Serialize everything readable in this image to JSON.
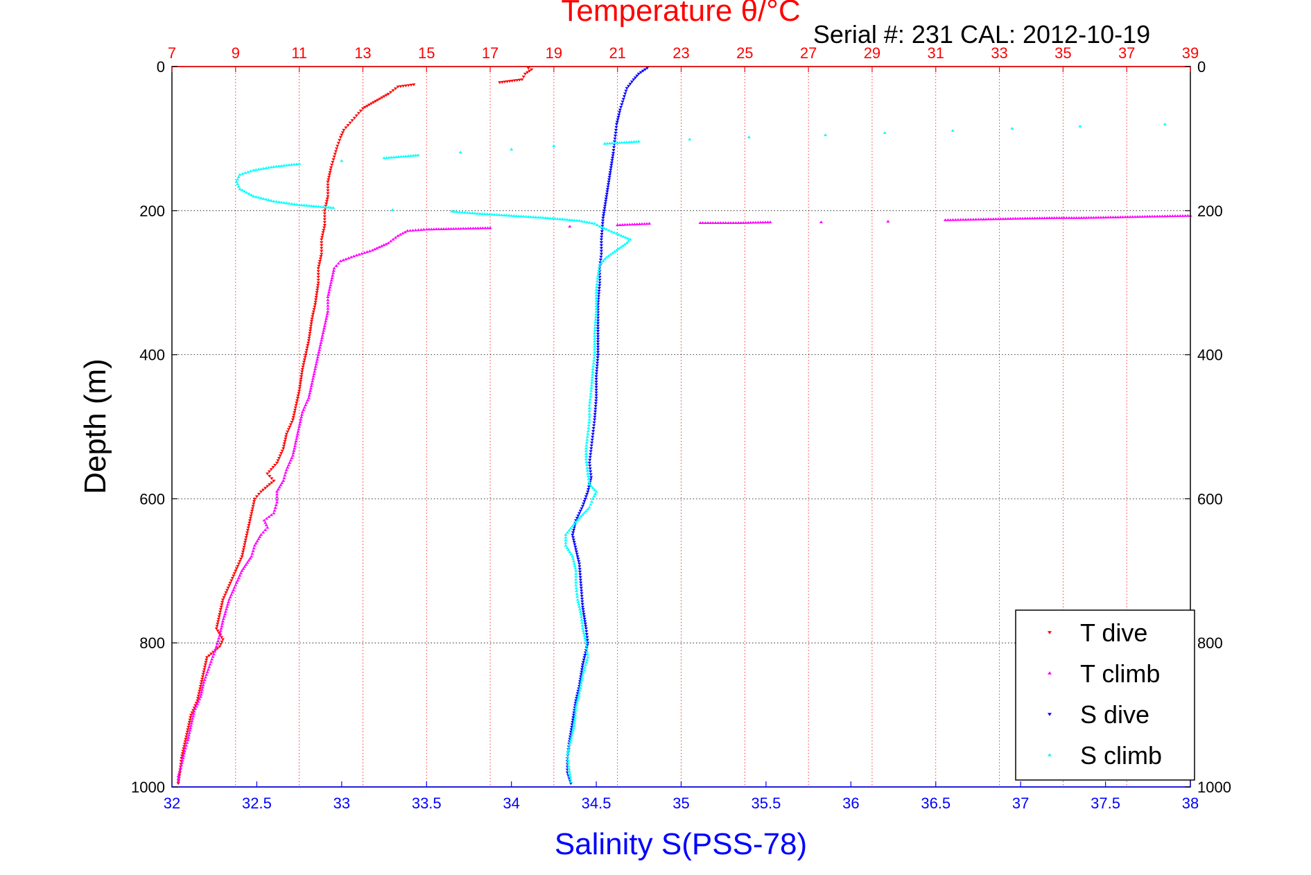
{
  "chart_data": {
    "type": "scatter",
    "title": "Temperature θ/°C",
    "subtitle": "Serial #: 231  CAL: 2012-10-19",
    "xlabel": "Salinity S(PSS-78)",
    "x2label": "Temperature θ/°C",
    "ylabel": "Depth (m)",
    "xlim": [
      32,
      38
    ],
    "x2lim": [
      7,
      39
    ],
    "ylim": [
      0,
      1000
    ],
    "y_reversed": true,
    "x_ticks": [
      "32",
      "32.5",
      "33",
      "33.5",
      "34",
      "34.5",
      "35",
      "35.5",
      "36",
      "36.5",
      "37",
      "37.5",
      "38"
    ],
    "x2_ticks": [
      "7",
      "9",
      "11",
      "13",
      "15",
      "17",
      "19",
      "21",
      "23",
      "25",
      "27",
      "29",
      "31",
      "33",
      "35",
      "37",
      "39"
    ],
    "y_ticks": [
      "0",
      "200",
      "400",
      "600",
      "800",
      "1000"
    ],
    "grid": true,
    "legend_position": "bottom-right",
    "legend": [
      "T dive",
      "T climb",
      "S dive",
      "S climb"
    ],
    "series": [
      {
        "name": "T dive",
        "axis": "temperature",
        "color": "#ff0000",
        "marker": "triangle-down",
        "points": [
          [
            18.2,
            2
          ],
          [
            18.3,
            4
          ],
          [
            18.1,
            10
          ],
          [
            18.0,
            18
          ],
          [
            17.3,
            22
          ],
          [
            14.6,
            25
          ],
          [
            14.1,
            28
          ],
          [
            13.8,
            38
          ],
          [
            13.4,
            48
          ],
          [
            13.0,
            58
          ],
          [
            12.8,
            68
          ],
          [
            12.6,
            78
          ],
          [
            12.4,
            88
          ],
          [
            12.3,
            98
          ],
          [
            12.2,
            110
          ],
          [
            12.1,
            125
          ],
          [
            12.0,
            140
          ],
          [
            11.9,
            160
          ],
          [
            11.9,
            180
          ],
          [
            11.8,
            200
          ],
          [
            11.8,
            220
          ],
          [
            11.7,
            240
          ],
          [
            11.7,
            260
          ],
          [
            11.6,
            280
          ],
          [
            11.6,
            300
          ],
          [
            11.5,
            330
          ],
          [
            11.4,
            350
          ],
          [
            11.3,
            380
          ],
          [
            11.2,
            400
          ],
          [
            11.1,
            420
          ],
          [
            11.0,
            450
          ],
          [
            10.9,
            470
          ],
          [
            10.8,
            490
          ],
          [
            10.6,
            510
          ],
          [
            10.5,
            530
          ],
          [
            10.3,
            550
          ],
          [
            10.0,
            565
          ],
          [
            10.2,
            575
          ],
          [
            9.8,
            590
          ],
          [
            9.6,
            600
          ],
          [
            9.5,
            620
          ],
          [
            9.4,
            640
          ],
          [
            9.3,
            660
          ],
          [
            9.2,
            680
          ],
          [
            9.0,
            700
          ],
          [
            8.8,
            720
          ],
          [
            8.6,
            740
          ],
          [
            8.5,
            760
          ],
          [
            8.4,
            780
          ],
          [
            8.6,
            795
          ],
          [
            8.5,
            805
          ],
          [
            8.1,
            820
          ],
          [
            8.0,
            840
          ],
          [
            7.9,
            860
          ],
          [
            7.8,
            880
          ],
          [
            7.6,
            900
          ],
          [
            7.5,
            920
          ],
          [
            7.4,
            940
          ],
          [
            7.3,
            960
          ],
          [
            7.25,
            980
          ],
          [
            7.2,
            995
          ]
        ]
      },
      {
        "name": "T climb",
        "axis": "temperature",
        "color": "#ff00ff",
        "marker": "triangle-up",
        "points": [
          [
            7.2,
            992
          ],
          [
            7.2,
            985
          ],
          [
            7.3,
            970
          ],
          [
            7.4,
            950
          ],
          [
            7.5,
            935
          ],
          [
            7.6,
            915
          ],
          [
            7.7,
            895
          ],
          [
            7.9,
            875
          ],
          [
            8.0,
            855
          ],
          [
            8.2,
            830
          ],
          [
            8.4,
            805
          ],
          [
            8.5,
            790
          ],
          [
            8.6,
            770
          ],
          [
            8.8,
            740
          ],
          [
            9.0,
            720
          ],
          [
            9.2,
            700
          ],
          [
            9.5,
            680
          ],
          [
            9.6,
            665
          ],
          [
            9.8,
            650
          ],
          [
            10.0,
            640
          ],
          [
            9.9,
            630
          ],
          [
            10.2,
            620
          ],
          [
            10.3,
            605
          ],
          [
            10.3,
            590
          ],
          [
            10.5,
            575
          ],
          [
            10.6,
            560
          ],
          [
            10.8,
            540
          ],
          [
            10.9,
            520
          ],
          [
            11.0,
            500
          ],
          [
            11.1,
            480
          ],
          [
            11.3,
            460
          ],
          [
            11.4,
            440
          ],
          [
            11.5,
            420
          ],
          [
            11.6,
            400
          ],
          [
            11.7,
            380
          ],
          [
            11.8,
            360
          ],
          [
            11.9,
            340
          ],
          [
            11.9,
            320
          ],
          [
            12.0,
            300
          ],
          [
            12.1,
            280
          ],
          [
            12.3,
            270
          ],
          [
            12.8,
            262
          ],
          [
            13.3,
            255
          ],
          [
            13.8,
            245
          ],
          [
            14.1,
            235
          ],
          [
            14.4,
            228
          ],
          [
            15.0,
            226
          ],
          [
            16.0,
            225
          ],
          [
            17.0,
            224
          ],
          [
            19.5,
            222
          ],
          [
            21.0,
            220
          ],
          [
            22.0,
            218
          ],
          [
            23.6,
            217
          ],
          [
            24.8,
            217
          ],
          [
            25.8,
            216
          ],
          [
            27.4,
            216
          ],
          [
            29.5,
            215
          ],
          [
            31.3,
            213
          ],
          [
            32.5,
            212
          ],
          [
            33.5,
            211
          ],
          [
            34.8,
            210
          ],
          [
            35.5,
            210
          ],
          [
            36.8,
            209
          ],
          [
            37.8,
            208
          ],
          [
            39.0,
            207
          ]
        ]
      },
      {
        "name": "S dive",
        "axis": "salinity",
        "color": "#0000ff",
        "marker": "triangle-down",
        "points": [
          [
            34.8,
            2
          ],
          [
            34.75,
            10
          ],
          [
            34.72,
            18
          ],
          [
            34.68,
            30
          ],
          [
            34.66,
            45
          ],
          [
            34.64,
            60
          ],
          [
            34.62,
            80
          ],
          [
            34.61,
            100
          ],
          [
            34.6,
            120
          ],
          [
            34.58,
            150
          ],
          [
            34.56,
            180
          ],
          [
            34.54,
            210
          ],
          [
            34.53,
            240
          ],
          [
            34.53,
            260
          ],
          [
            34.52,
            280
          ],
          [
            34.52,
            300
          ],
          [
            34.51,
            330
          ],
          [
            34.51,
            360
          ],
          [
            34.51,
            400
          ],
          [
            34.5,
            430
          ],
          [
            34.5,
            460
          ],
          [
            34.49,
            490
          ],
          [
            34.48,
            510
          ],
          [
            34.47,
            530
          ],
          [
            34.46,
            550
          ],
          [
            34.47,
            570
          ],
          [
            34.45,
            590
          ],
          [
            34.42,
            610
          ],
          [
            34.38,
            630
          ],
          [
            34.36,
            650
          ],
          [
            34.38,
            670
          ],
          [
            34.4,
            690
          ],
          [
            34.41,
            720
          ],
          [
            34.42,
            750
          ],
          [
            34.44,
            780
          ],
          [
            34.45,
            800
          ],
          [
            34.44,
            810
          ],
          [
            34.42,
            830
          ],
          [
            34.4,
            860
          ],
          [
            34.38,
            880
          ],
          [
            34.36,
            910
          ],
          [
            34.34,
            940
          ],
          [
            34.33,
            960
          ],
          [
            34.33,
            980
          ],
          [
            34.35,
            995
          ]
        ]
      },
      {
        "name": "S climb",
        "axis": "salinity",
        "color": "#00ffff",
        "marker": "triangle-up",
        "points": [
          [
            34.35,
            993
          ],
          [
            34.34,
            975
          ],
          [
            34.33,
            955
          ],
          [
            34.35,
            935
          ],
          [
            34.37,
            915
          ],
          [
            34.38,
            890
          ],
          [
            34.4,
            870
          ],
          [
            34.42,
            845
          ],
          [
            34.45,
            820
          ],
          [
            34.44,
            800
          ],
          [
            34.42,
            780
          ],
          [
            34.41,
            760
          ],
          [
            34.39,
            740
          ],
          [
            34.38,
            720
          ],
          [
            34.38,
            700
          ],
          [
            34.36,
            680
          ],
          [
            34.32,
            665
          ],
          [
            34.32,
            650
          ],
          [
            34.37,
            635
          ],
          [
            34.42,
            622
          ],
          [
            34.46,
            612
          ],
          [
            34.48,
            600
          ],
          [
            34.5,
            590
          ],
          [
            34.46,
            580
          ],
          [
            34.45,
            565
          ],
          [
            34.44,
            545
          ],
          [
            34.44,
            530
          ],
          [
            34.45,
            510
          ],
          [
            34.46,
            490
          ],
          [
            34.46,
            470
          ],
          [
            34.47,
            450
          ],
          [
            34.48,
            420
          ],
          [
            34.49,
            400
          ],
          [
            34.49,
            370
          ],
          [
            34.5,
            340
          ],
          [
            34.5,
            310
          ],
          [
            34.51,
            290
          ],
          [
            34.52,
            275
          ],
          [
            34.56,
            265
          ],
          [
            34.62,
            255
          ],
          [
            34.68,
            245
          ],
          [
            34.7,
            240
          ],
          [
            34.62,
            232
          ],
          [
            34.56,
            226
          ],
          [
            34.52,
            222
          ],
          [
            34.49,
            218
          ],
          [
            34.4,
            214
          ],
          [
            34.2,
            210
          ],
          [
            34.0,
            207
          ],
          [
            33.8,
            204
          ],
          [
            33.65,
            201
          ],
          [
            33.3,
            199
          ],
          [
            32.95,
            196
          ],
          [
            32.75,
            192
          ],
          [
            32.6,
            187
          ],
          [
            32.48,
            180
          ],
          [
            32.4,
            170
          ],
          [
            32.38,
            160
          ],
          [
            32.4,
            150
          ],
          [
            32.48,
            144
          ],
          [
            32.6,
            139
          ],
          [
            32.75,
            135
          ],
          [
            33.0,
            131
          ],
          [
            33.25,
            127
          ],
          [
            33.45,
            123
          ],
          [
            33.7,
            119
          ],
          [
            34.0,
            115
          ],
          [
            34.25,
            110
          ],
          [
            34.55,
            107
          ],
          [
            34.75,
            104
          ],
          [
            35.05,
            101
          ],
          [
            35.4,
            98
          ],
          [
            35.85,
            95
          ],
          [
            36.2,
            92
          ],
          [
            36.6,
            89
          ],
          [
            36.95,
            86
          ],
          [
            37.35,
            83
          ],
          [
            37.85,
            80
          ]
        ]
      }
    ]
  }
}
